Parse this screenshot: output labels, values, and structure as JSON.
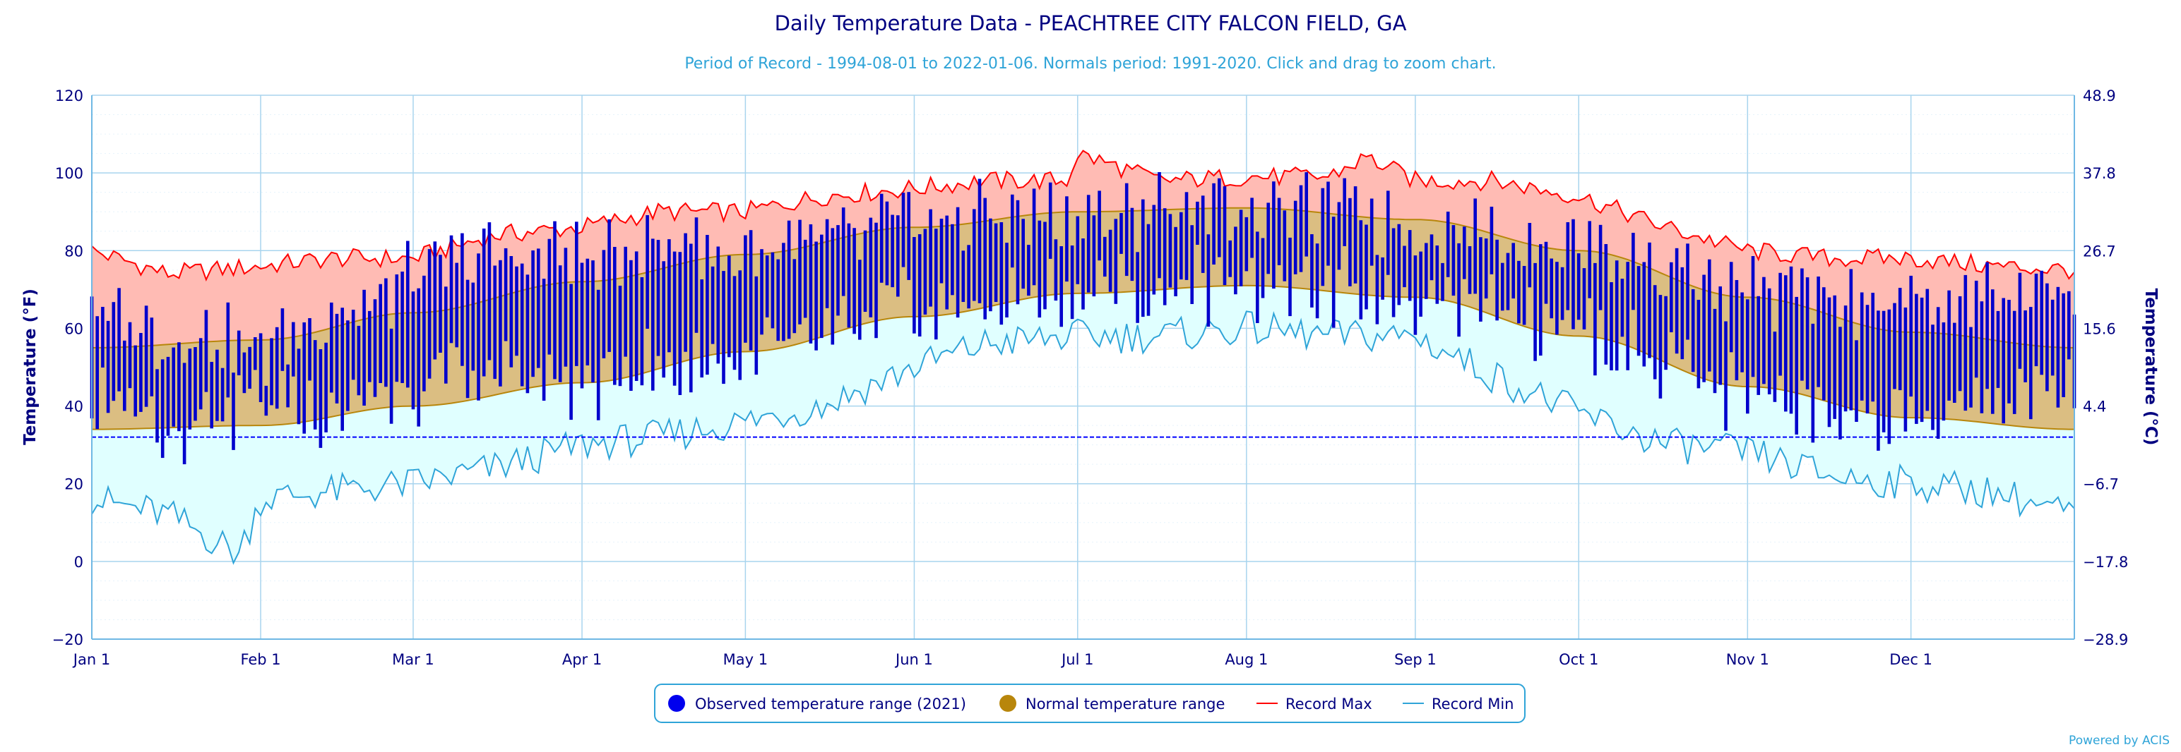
{
  "chart_data": {
    "type": "area",
    "title": "Daily Temperature Data - PEACHTREE CITY FALCON FIELD, GA",
    "subtitle": "Period of Record - 1994-08-01 to 2022-01-06. Normals period: 1991-2020. Click and drag to zoom chart.",
    "ylabel": "Temperature (°F)",
    "y2label": "Temperature (°C)",
    "ylim": [
      -20,
      120
    ],
    "y2lim": [
      -28.9,
      48.9
    ],
    "yticks": [
      "120",
      "100",
      "80",
      "60",
      "40",
      "20",
      "0",
      "−20"
    ],
    "y2ticks": [
      "48.9",
      "37.8",
      "26.7",
      "15.6",
      "4.4",
      "−6.7",
      "−17.8",
      "−28.9"
    ],
    "xlim": [
      1,
      365
    ],
    "xticks": [
      {
        "label": "Jan 1",
        "day": 1
      },
      {
        "label": "Feb 1",
        "day": 32
      },
      {
        "label": "Mar 1",
        "day": 60
      },
      {
        "label": "Apr 1",
        "day": 91
      },
      {
        "label": "May 1",
        "day": 121
      },
      {
        "label": "Jun 1",
        "day": 152
      },
      {
        "label": "Jul 1",
        "day": 182
      },
      {
        "label": "Aug 1",
        "day": 213
      },
      {
        "label": "Sep 1",
        "day": 244
      },
      {
        "label": "Oct 1",
        "day": 274
      },
      {
        "label": "Nov 1",
        "day": 305
      },
      {
        "label": "Dec 1",
        "day": 335
      }
    ],
    "freezing_line": 32,
    "legend_position": "bottom-center",
    "grid": true,
    "series": [
      {
        "name": "Observed temperature range (2021)",
        "color": "#0000cc",
        "kind": "daily bars (min to max)",
        "anchors": {
          "day": [
            1,
            15,
            32,
            45,
            60,
            75,
            91,
            105,
            121,
            135,
            152,
            165,
            182,
            197,
            213,
            228,
            244,
            258,
            274,
            290,
            305,
            320,
            335,
            350,
            365
          ],
          "max": [
            66,
            58,
            54,
            64,
            72,
            80,
            78,
            82,
            78,
            82,
            88,
            88,
            88,
            90,
            92,
            90,
            86,
            84,
            82,
            76,
            70,
            66,
            68,
            68,
            74
          ],
          "min": [
            42,
            34,
            40,
            40,
            44,
            48,
            46,
            50,
            54,
            58,
            64,
            66,
            70,
            70,
            72,
            70,
            68,
            66,
            60,
            52,
            42,
            38,
            38,
            40,
            50
          ]
        }
      },
      {
        "name": "Normal temperature range",
        "color": "#b8860b",
        "anchors": {
          "day": [
            1,
            32,
            60,
            91,
            121,
            152,
            182,
            213,
            244,
            274,
            305,
            335,
            365
          ],
          "max": [
            55,
            57,
            64,
            72,
            79,
            86,
            90,
            91,
            88,
            80,
            68,
            59,
            55
          ],
          "min": [
            34,
            35,
            40,
            46,
            54,
            63,
            69,
            71,
            68,
            58,
            45,
            37,
            34
          ]
        }
      },
      {
        "name": "Record Max",
        "color": "#ff0000",
        "anchors": {
          "day": [
            1,
            15,
            32,
            45,
            60,
            75,
            91,
            105,
            121,
            135,
            152,
            165,
            180,
            182,
            197,
            213,
            228,
            235,
            244,
            258,
            274,
            290,
            305,
            320,
            335,
            350,
            365
          ],
          "max": [
            80,
            74,
            76,
            78,
            78,
            84,
            86,
            90,
            90,
            94,
            96,
            98,
            98,
            105,
            98,
            99,
            99,
            104,
            98,
            98,
            94,
            86,
            80,
            78,
            78,
            76,
            75
          ]
        }
      },
      {
        "name": "Record Min",
        "color": "#2fa4d8",
        "anchors": {
          "day": [
            1,
            15,
            28,
            32,
            45,
            60,
            75,
            91,
            105,
            121,
            135,
            152,
            165,
            182,
            197,
            213,
            228,
            244,
            258,
            274,
            290,
            305,
            320,
            335,
            350,
            365
          ],
          "min": [
            16,
            12,
            2,
            16,
            18,
            20,
            24,
            30,
            32,
            36,
            40,
            50,
            56,
            58,
            58,
            60,
            58,
            58,
            48,
            38,
            30,
            28,
            22,
            20,
            18,
            12
          ]
        }
      }
    ]
  },
  "legend": {
    "observed": "Observed temperature range (2021)",
    "normal": "Normal temperature range",
    "record_max": "Record Max",
    "record_min": "Record Min"
  },
  "credit": "Powered by ACIS",
  "colors": {
    "observed": "#0000cc",
    "normal_fill": "#dbbe82",
    "normal_line": "#b8860b",
    "record_max_fill": "#ffbbb4",
    "record_max_line": "#ff0000",
    "record_min_fill": "#e0ffff",
    "record_min_line": "#2fa4d8",
    "grid": "#a8d4ee",
    "freezing": "#0000ff"
  }
}
